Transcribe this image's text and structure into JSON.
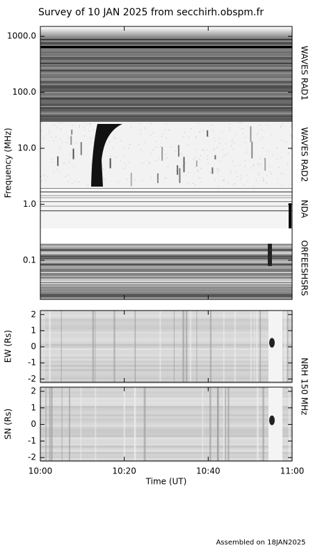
{
  "chart_data": [
    {
      "type": "spectrogram",
      "title": "Survey of 10 JAN 2025 from secchirh.obspm.fr",
      "ylabel": "Frequency (MHz)",
      "yscale": "log",
      "ylim": [
        0.02,
        1500
      ],
      "yticks": [
        0.1,
        {
          "value": 1,
          "label": "1.0"
        },
        {
          "value": 10,
          "label": "10.0"
        },
        {
          "value": 100,
          "label": "100.0"
        },
        {
          "value": 1000,
          "label": "1000.0"
        }
      ],
      "panels": [
        "WAVES RAD1",
        "WAVES RAD2",
        "NDA",
        "ORFEESHSRS"
      ]
    },
    {
      "type": "spectrogram",
      "ylabel": "EW (Rs)",
      "ylim": [
        -2.2,
        2.25
      ],
      "yticks": [
        -2,
        -1,
        0,
        1,
        2
      ],
      "panels": [
        "NRH 150 MHz"
      ]
    },
    {
      "type": "spectrogram",
      "ylabel": "SN (Rs)",
      "ylim": [
        -2.2,
        2.25
      ],
      "yticks": [
        -2,
        -1,
        0,
        1,
        2
      ],
      "xlabel": "Time (UT)",
      "xlim": [
        "10:00",
        "11:00"
      ],
      "xticks": [
        "10:00",
        "10:20",
        "10:40",
        "11:00"
      ]
    }
  ],
  "footer": "Assembled on 18JAN2025"
}
